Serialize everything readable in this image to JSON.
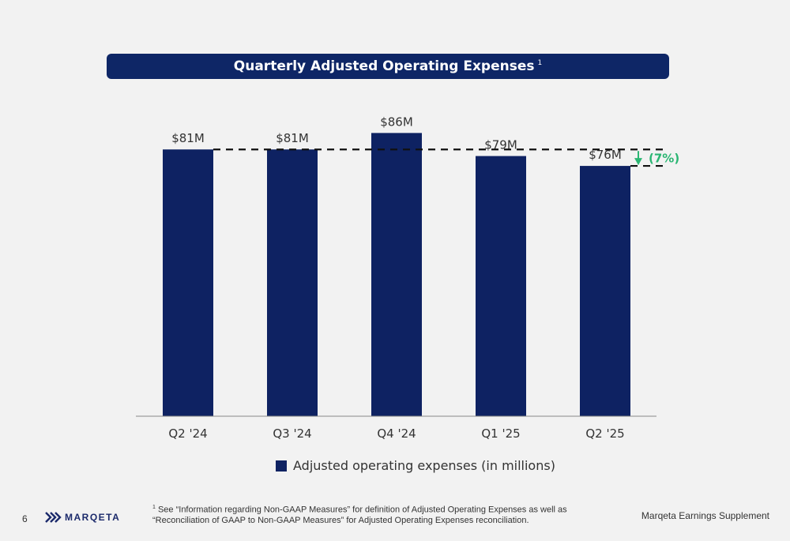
{
  "header": {
    "title": "Quarterly Adjusted Operating Expenses",
    "footnote_marker": "1"
  },
  "chart_data": {
    "type": "bar",
    "categories": [
      "Q2 '24",
      "Q3 '24",
      "Q4 '24",
      "Q1 '25",
      "Q2 '25"
    ],
    "values": [
      81,
      81,
      86,
      79,
      76
    ],
    "data_labels": [
      "$81M",
      "$81M",
      "$86M",
      "$79M",
      "$76M"
    ],
    "ylim": [
      0,
      100
    ],
    "grid": false,
    "bar_color": "#0e2262",
    "annotation": {
      "label": "(7%)",
      "from_value": 81,
      "to_value": 76,
      "color": "#2bb673"
    },
    "legend": {
      "label": "Adjusted operating expenses (in millions)",
      "placement": "bottom"
    }
  },
  "footer": {
    "page_number": "6",
    "logo_text": "MARQETA",
    "footnote_marker": "1",
    "footnote_line1": "See “Information regarding Non-GAAP Measures” for definition of Adjusted Operating Expenses as well as",
    "footnote_line2": "“Reconciliation of GAAP to Non-GAAP Measures” for Adjusted Operating Expenses reconciliation.",
    "supplement": "Marqeta Earnings Supplement"
  }
}
